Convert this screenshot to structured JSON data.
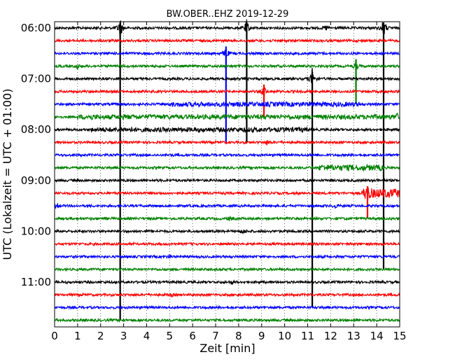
{
  "chart_data": {
    "type": "line",
    "title": "BW.OBER..EHZ 2019-12-29",
    "xlabel": "Zeit  [min]",
    "ylabel": "UTC (Lokalzeit = UTC + 01:00)",
    "xlim": [
      0,
      15
    ],
    "xticks": [
      "0",
      "1",
      "2",
      "3",
      "4",
      "5",
      "6",
      "7",
      "8",
      "9",
      "10",
      "11",
      "12",
      "13",
      "14",
      "15"
    ],
    "yticks": [
      "06:00",
      "07:00",
      "08:00",
      "09:00",
      "10:00",
      "11:00"
    ],
    "trace_start": "06:00",
    "trace_interval_minutes": 15,
    "trace_count": 24,
    "trace_colors": [
      "#000000",
      "#ff0000",
      "#0000ff",
      "#008000"
    ],
    "grid_x": true,
    "events": [
      {
        "trace": 0,
        "x": 2.85,
        "amp": 4.5,
        "spans": 23
      },
      {
        "trace": 0,
        "x": 8.35,
        "amp": 3.5,
        "spans": 9
      },
      {
        "trace": 0,
        "x": 11.8,
        "amp": 1.2,
        "spans": 0
      },
      {
        "trace": 0,
        "x": 14.3,
        "amp": 4.2,
        "spans": 19
      },
      {
        "trace": 2,
        "x": 7.45,
        "amp": 2.5,
        "spans": 7
      },
      {
        "trace": 3,
        "x": 1.0,
        "amp": 1.2,
        "spans": 0
      },
      {
        "trace": 3,
        "x": 13.1,
        "amp": 1.5,
        "spans": 3
      },
      {
        "trace": 4,
        "x": 11.2,
        "amp": 4.5,
        "spans": 18
      },
      {
        "trace": 5,
        "x": 9.1,
        "amp": 2.5,
        "spans": 2
      },
      {
        "trace": 7,
        "x": 1.6,
        "amp": 0.6,
        "spans": 0
      },
      {
        "trace": 7,
        "x": 14.9,
        "amp": 0.8,
        "spans": 0
      },
      {
        "trace": 9,
        "x": 9.25,
        "amp": 0.8,
        "spans": 0
      },
      {
        "trace": 13,
        "x": 13.6,
        "amp": 2.5,
        "spans": 2
      },
      {
        "trace": 14,
        "x": 0.1,
        "amp": 1.2,
        "spans": 0
      },
      {
        "trace": 14,
        "x": 12.2,
        "amp": 0.8,
        "spans": 0
      },
      {
        "trace": 15,
        "x": 7.6,
        "amp": 0.6,
        "spans": 0
      },
      {
        "trace": 16,
        "x": 8.2,
        "amp": 1.0,
        "spans": 0
      },
      {
        "trace": 18,
        "x": 5.0,
        "amp": 0.7,
        "spans": 0
      },
      {
        "trace": 20,
        "x": 7.7,
        "amp": 0.6,
        "spans": 0
      },
      {
        "trace": 21,
        "x": 5.1,
        "amp": 0.5,
        "spans": 0
      }
    ],
    "bursts": [
      {
        "trace": 6,
        "x": [
          5.0,
          13.3
        ],
        "amp": 0.5
      },
      {
        "trace": 7,
        "x": [
          1.0,
          14.9
        ],
        "amp": 0.5
      },
      {
        "trace": 8,
        "x": [
          1.6,
          11.0
        ],
        "amp": 0.5
      },
      {
        "trace": 11,
        "x": [
          11.5,
          14.3
        ],
        "amp": 0.8
      },
      {
        "trace": 13,
        "x": [
          13.4,
          15.0
        ],
        "amp": 1.5
      }
    ]
  }
}
